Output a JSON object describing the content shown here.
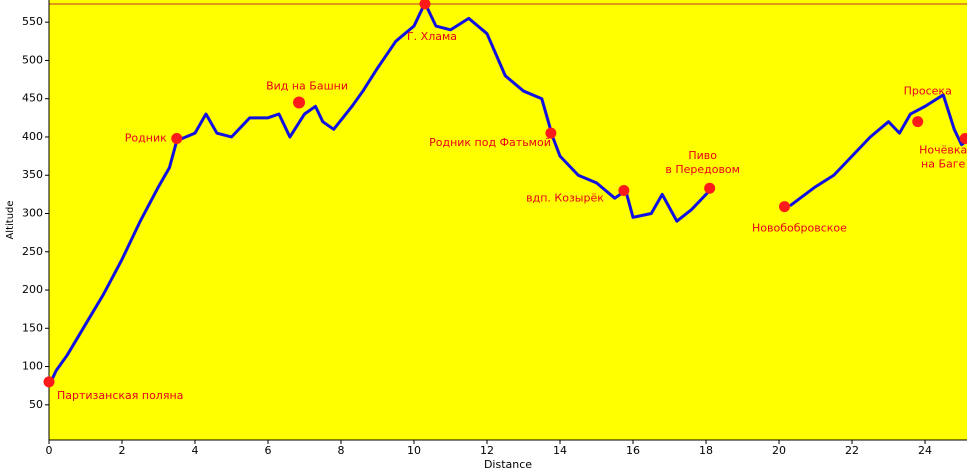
{
  "chart_data": {
    "type": "line",
    "x_label": "Distance",
    "y_label": "Altitude",
    "xlim": [
      0,
      25.15
    ],
    "ylim": [
      4,
      579
    ],
    "xticks": [
      0,
      2,
      4,
      6,
      8,
      10,
      12,
      14,
      16,
      18,
      20,
      22,
      24
    ],
    "yticks": [
      50,
      100,
      150,
      200,
      250,
      300,
      350,
      400,
      450,
      500,
      550
    ],
    "series": [
      {
        "color": "#1010e0",
        "x": [
          0,
          0.2,
          0.5,
          1.0,
          1.5,
          2.0,
          2.5,
          3.0,
          3.3,
          3.5,
          4.0,
          4.3,
          4.6,
          5.0,
          5.5,
          6.0,
          6.3,
          6.6,
          7.0,
          7.3,
          7.5,
          7.8,
          8.3,
          8.6,
          9.0,
          9.5,
          10.0,
          10.3,
          10.6,
          11.0,
          11.5,
          12.0,
          12.5,
          13.0,
          13.5,
          13.8,
          14.0,
          14.5,
          15.0,
          15.5,
          15.8,
          16.0,
          16.5,
          16.8,
          17.2,
          17.6,
          18.0,
          18.2,
          19.2,
          20.3,
          21.0,
          21.5,
          22.0,
          22.5,
          23.0,
          23.3,
          23.6,
          24.0,
          24.5,
          24.8,
          25.0,
          25.15
        ],
        "values": [
          75,
          95,
          115,
          155,
          195,
          240,
          290,
          335,
          360,
          395,
          405,
          430,
          405,
          400,
          425,
          425,
          430,
          400,
          430,
          440,
          420,
          410,
          440,
          460,
          490,
          525,
          545,
          575,
          545,
          540,
          555,
          535,
          480,
          460,
          450,
          400,
          375,
          350,
          340,
          320,
          330,
          295,
          300,
          325,
          290,
          305,
          325,
          335,
          null,
          310,
          335,
          350,
          375,
          400,
          420,
          405,
          430,
          440,
          455,
          410,
          390,
          395
        ]
      }
    ],
    "waypoints": [
      {
        "text": [
          "Партизанская поляна"
        ],
        "x": 0,
        "y": 80
      },
      {
        "text": [
          "Родник"
        ],
        "x": 3.5,
        "y": 398
      },
      {
        "text": [
          "Вид на Башни"
        ],
        "x": 6.85,
        "y": 445
      },
      {
        "text": [
          "Г. Хлама"
        ],
        "x": 10.3,
        "y": 574
      },
      {
        "text": [
          "Родник под Фатьмой"
        ],
        "x": 13.75,
        "y": 405
      },
      {
        "text": [
          "вдп. Козырёк"
        ],
        "x": 15.75,
        "y": 330
      },
      {
        "text": [
          "Пиво",
          "в Передовом"
        ],
        "x": 18.1,
        "y": 333
      },
      {
        "text": [
          "Новобобровское"
        ],
        "x": 20.15,
        "y": 309
      },
      {
        "text": [
          "Просека"
        ],
        "x": 23.8,
        "y": 420
      },
      {
        "text": [
          "Ночёвка",
          "на Баге"
        ],
        "x": 25.1,
        "y": 398
      }
    ]
  }
}
